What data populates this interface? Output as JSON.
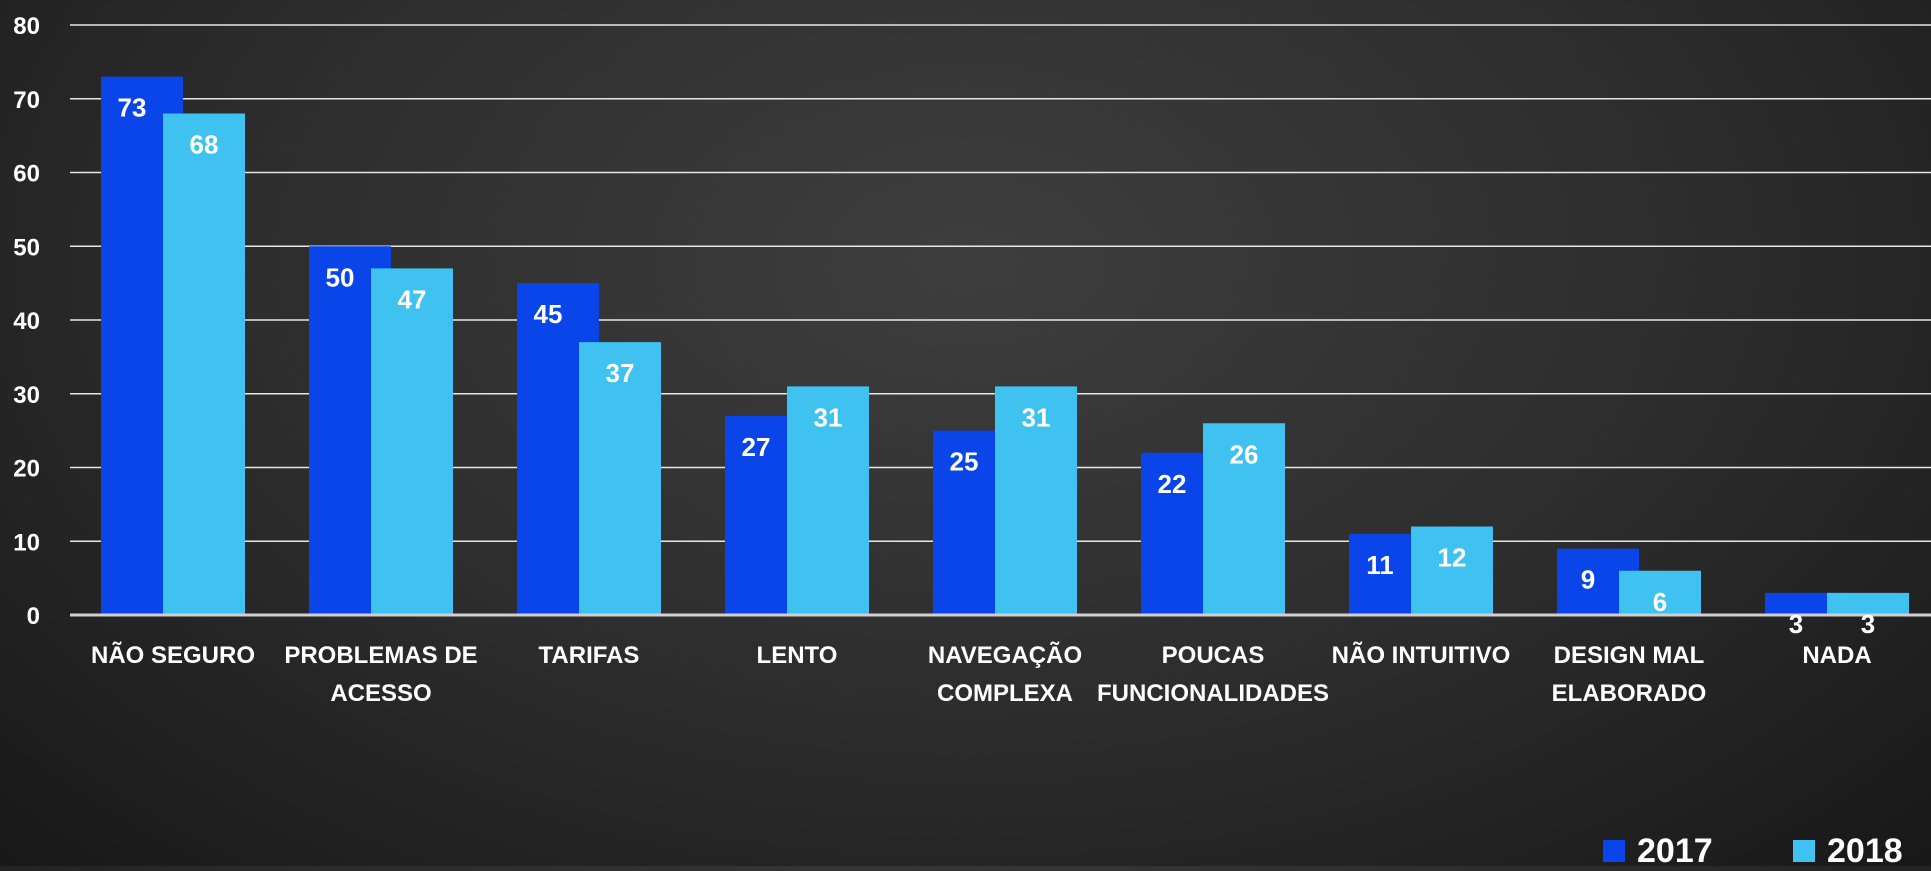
{
  "chart_data": {
    "type": "bar",
    "categories": [
      [
        "NÃO SEGURO"
      ],
      [
        "PROBLEMAS DE",
        "ACESSO"
      ],
      [
        "TARIFAS"
      ],
      [
        "LENTO"
      ],
      [
        "NAVEGAÇÃO",
        "COMPLEXA"
      ],
      [
        "POUCAS",
        "FUNCIONALIDADES"
      ],
      [
        "NÃO INTUITIVO"
      ],
      [
        "DESIGN MAL",
        "ELABORADO"
      ],
      [
        "NADA"
      ]
    ],
    "series": [
      {
        "name": "2017",
        "color": "#0a45ea",
        "values": [
          73,
          50,
          45,
          27,
          25,
          22,
          11,
          9,
          3
        ]
      },
      {
        "name": "2018",
        "color": "#3fc2ef",
        "values": [
          68,
          47,
          37,
          31,
          31,
          26,
          12,
          6,
          3
        ]
      }
    ],
    "ylim": [
      0,
      80
    ],
    "yticks": [
      0,
      10,
      20,
      30,
      40,
      50,
      60,
      70,
      80
    ],
    "grid": true,
    "legend_position": "bottom-right"
  }
}
